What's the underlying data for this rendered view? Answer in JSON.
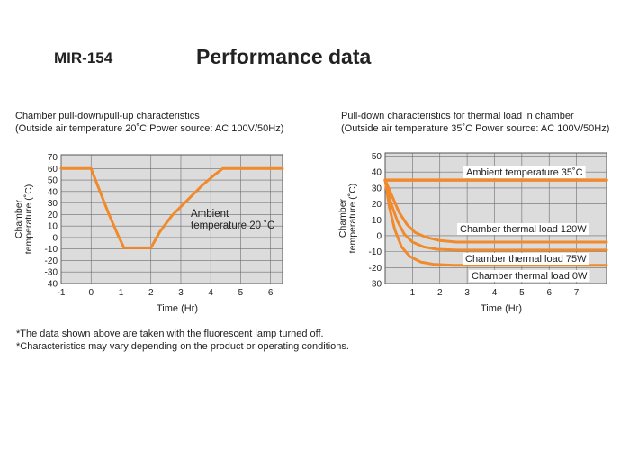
{
  "header": {
    "model": "MIR-154",
    "title": "Performance data"
  },
  "chart_data": [
    {
      "type": "line",
      "title": "Chamber pull-down/pull-up characteristics",
      "subtitle": "(Outside air temperature 20˚C Power source: AC 100V/50Hz)",
      "xlabel": "Time (Hr)",
      "ylabel": "Chamber temperature (˚C)",
      "xlim": [
        -1,
        6.4
      ],
      "ylim": [
        -40,
        72
      ],
      "x_ticks": [
        -1,
        0,
        1,
        2,
        3,
        4,
        5,
        6
      ],
      "y_ticks": [
        70,
        60,
        50,
        40,
        30,
        20,
        10,
        0,
        -10,
        -20,
        -30,
        -40
      ],
      "grid": true,
      "series": [
        {
          "x": [
            -1,
            0,
            0.3,
            0.6,
            0.9,
            1.1,
            1.5,
            2.0,
            2.3,
            2.7,
            3.2,
            3.7,
            4.1,
            4.4,
            6.4
          ],
          "y": [
            60,
            60,
            40,
            20,
            2,
            -9,
            -9,
            -9,
            5,
            19,
            32,
            45,
            54,
            60,
            60
          ]
        }
      ],
      "annotation": {
        "text": [
          "Ambient",
          "temperature 20 ˚C"
        ]
      }
    },
    {
      "type": "line",
      "title": "Pull-down characteristics for thermal load in chamber",
      "subtitle": "(Outside air temperature 35˚C Power source: AC 100V/50Hz)",
      "xlabel": "Time (Hr)",
      "ylabel": "Chamber temperature (˚C)",
      "xlim": [
        0,
        8.1
      ],
      "ylim": [
        -30,
        52
      ],
      "x_ticks": [
        1,
        2,
        3,
        4,
        5,
        6,
        7
      ],
      "y_ticks": [
        50,
        40,
        30,
        20,
        10,
        0,
        -10,
        -20,
        -30
      ],
      "grid": true,
      "series": [
        {
          "name": "Ambient temperature 35˚C",
          "x": [
            0,
            8.1
          ],
          "y": [
            35,
            35
          ]
        },
        {
          "name": "Chamber thermal load 120W",
          "x": [
            0,
            0.25,
            0.5,
            0.8,
            1.1,
            1.5,
            2.0,
            2.6,
            3.5,
            5,
            8.1
          ],
          "y": [
            35,
            25,
            15,
            7,
            2,
            -1,
            -3,
            -4,
            -4,
            -4,
            -4
          ]
        },
        {
          "name": "Chamber thermal load 75W",
          "x": [
            0,
            0.2,
            0.45,
            0.7,
            1.0,
            1.4,
            1.9,
            2.6,
            3.5,
            5,
            8.1
          ],
          "y": [
            35,
            21,
            9,
            1,
            -4,
            -7,
            -8.5,
            -9,
            -9,
            -9,
            -9
          ]
        },
        {
          "name": "Chamber thermal load 0W",
          "x": [
            0,
            0.15,
            0.35,
            0.6,
            0.9,
            1.3,
            1.8,
            2.5,
            3.5,
            5,
            8.1
          ],
          "y": [
            35,
            18,
            4,
            -7,
            -13,
            -16.5,
            -18,
            -18.5,
            -18.5,
            -18.5,
            -18.5
          ]
        }
      ]
    }
  ],
  "notes": [
    "*The data shown above are taken with the fluorescent lamp turned off.",
    "*Characteristics may vary depending on the product or operating conditions."
  ],
  "colors": {
    "line": "#f08a2c",
    "grid": "#6e6e6e",
    "background": "#dcdcdc"
  }
}
